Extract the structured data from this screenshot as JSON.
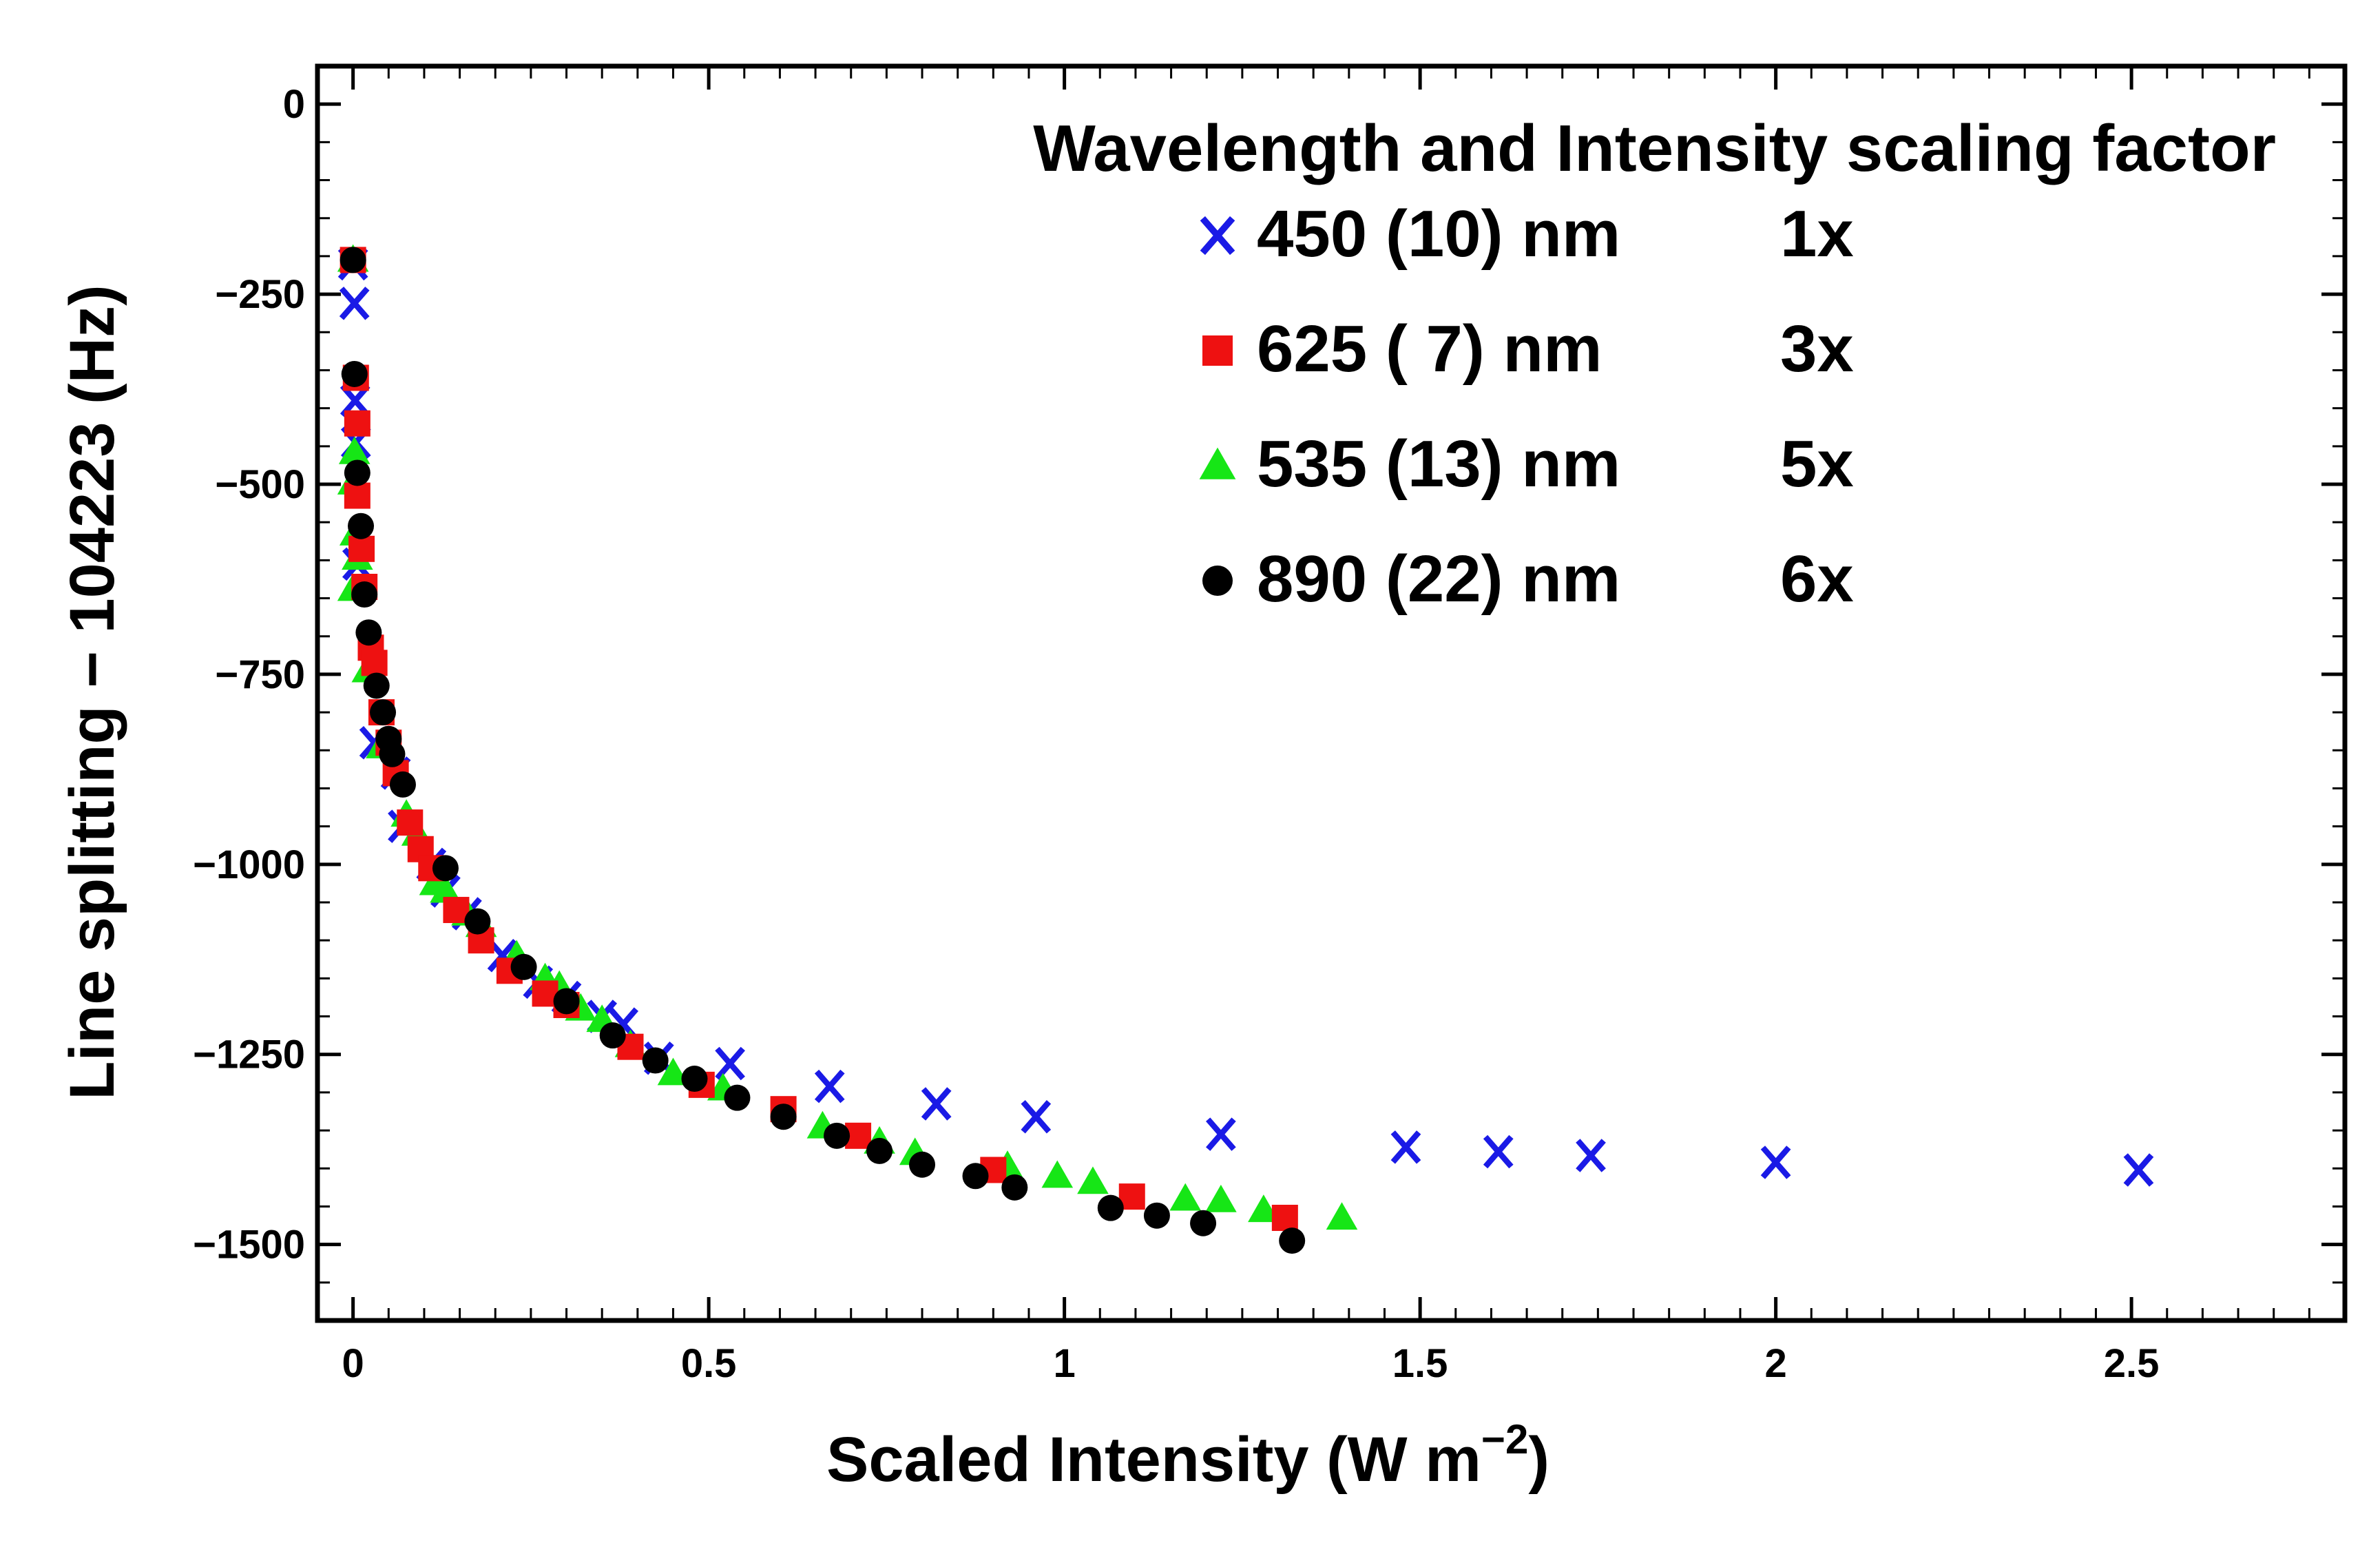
{
  "chart_data": {
    "type": "scatter",
    "title": "",
    "xlabel": "Scaled Intensity (W m",
    "xlabel_sup": "−2",
    "xlabel_end": ")",
    "ylabel": "Line splitting − 104223 (Hz)",
    "xlim": [
      -0.05,
      2.8
    ],
    "ylim": [
      -1600,
      50
    ],
    "xticks": [
      {
        "value": 0,
        "label": "0"
      },
      {
        "value": 0.5,
        "label": "0.5"
      },
      {
        "value": 1,
        "label": "1"
      },
      {
        "value": 1.5,
        "label": "1.5"
      },
      {
        "value": 2,
        "label": "2"
      },
      {
        "value": 2.5,
        "label": "2.5"
      }
    ],
    "yticks": [
      {
        "value": 0,
        "label": "0"
      },
      {
        "value": -250,
        "label": "−250"
      },
      {
        "value": -500,
        "label": "−500"
      },
      {
        "value": -750,
        "label": "−750"
      },
      {
        "value": -1000,
        "label": "−1000"
      },
      {
        "value": -1250,
        "label": "−1250"
      },
      {
        "value": -1500,
        "label": "−1500"
      }
    ],
    "grid": false,
    "legend": {
      "position": "top-right",
      "title": "Wavelength and Intensity scaling factor",
      "entries": [
        {
          "label": "450 (10) nm",
          "factor": "1x"
        },
        {
          "label": "625 ( 7)  nm",
          "factor": "3x"
        },
        {
          "label": "535 (13) nm",
          "factor": "5x"
        },
        {
          "label": "890 (22) nm",
          "factor": "6x"
        }
      ]
    },
    "series": [
      {
        "name": "450 (10) nm",
        "marker": "x",
        "color": "#1a1ae6",
        "points": [
          [
            0.0,
            -210
          ],
          [
            0.002,
            -262
          ],
          [
            0.003,
            -390
          ],
          [
            0.004,
            -445
          ],
          [
            0.006,
            -605
          ],
          [
            0.03,
            -840
          ],
          [
            0.06,
            -880
          ],
          [
            0.07,
            -950
          ],
          [
            0.11,
            -1000
          ],
          [
            0.13,
            -1035
          ],
          [
            0.16,
            -1065
          ],
          [
            0.21,
            -1120
          ],
          [
            0.26,
            -1155
          ],
          [
            0.3,
            -1175
          ],
          [
            0.35,
            -1200
          ],
          [
            0.38,
            -1210
          ],
          [
            0.43,
            -1255
          ],
          [
            0.53,
            -1262
          ],
          [
            0.67,
            -1292
          ],
          [
            0.82,
            -1315
          ],
          [
            0.96,
            -1332
          ],
          [
            1.22,
            -1355
          ],
          [
            1.48,
            -1372
          ],
          [
            1.61,
            -1378
          ],
          [
            1.74,
            -1383
          ],
          [
            2.0,
            -1392
          ],
          [
            2.51,
            -1402
          ]
        ]
      },
      {
        "name": "625 ( 7)  nm",
        "marker": "square",
        "color": "#ee1111",
        "points": [
          [
            0.0,
            -205
          ],
          [
            0.004,
            -360
          ],
          [
            0.006,
            -420
          ],
          [
            0.006,
            -515
          ],
          [
            0.012,
            -585
          ],
          [
            0.016,
            -635
          ],
          [
            0.025,
            -715
          ],
          [
            0.03,
            -735
          ],
          [
            0.04,
            -800
          ],
          [
            0.05,
            -840
          ],
          [
            0.06,
            -880
          ],
          [
            0.08,
            -945
          ],
          [
            0.095,
            -980
          ],
          [
            0.11,
            -1005
          ],
          [
            0.145,
            -1060
          ],
          [
            0.18,
            -1100
          ],
          [
            0.22,
            -1140
          ],
          [
            0.27,
            -1170
          ],
          [
            0.3,
            -1185
          ],
          [
            0.39,
            -1240
          ],
          [
            0.49,
            -1290
          ],
          [
            0.605,
            -1322
          ],
          [
            0.71,
            -1357
          ],
          [
            0.9,
            -1402
          ],
          [
            1.095,
            -1437
          ],
          [
            1.31,
            -1465
          ]
        ]
      },
      {
        "name": "535 (13) nm",
        "marker": "triangle",
        "color": "#16e616",
        "points": [
          [
            0.0,
            -205
          ],
          [
            0.002,
            -458
          ],
          [
            0.0,
            -498
          ],
          [
            0.003,
            -565
          ],
          [
            0.006,
            -597
          ],
          [
            0.0,
            -638
          ],
          [
            0.02,
            -745
          ],
          [
            0.04,
            -845
          ],
          [
            0.075,
            -935
          ],
          [
            0.09,
            -960
          ],
          [
            0.115,
            -1025
          ],
          [
            0.13,
            -1035
          ],
          [
            0.16,
            -1065
          ],
          [
            0.18,
            -1080
          ],
          [
            0.23,
            -1120
          ],
          [
            0.27,
            -1150
          ],
          [
            0.29,
            -1160
          ],
          [
            0.32,
            -1190
          ],
          [
            0.35,
            -1205
          ],
          [
            0.39,
            -1238
          ],
          [
            0.45,
            -1275
          ],
          [
            0.52,
            -1295
          ],
          [
            0.66,
            -1345
          ],
          [
            0.74,
            -1365
          ],
          [
            0.79,
            -1380
          ],
          [
            0.92,
            -1397
          ],
          [
            0.99,
            -1410
          ],
          [
            1.04,
            -1418
          ],
          [
            1.17,
            -1440
          ],
          [
            1.22,
            -1442
          ],
          [
            1.28,
            -1455
          ],
          [
            1.39,
            -1465
          ]
        ]
      },
      {
        "name": "890 (22) nm",
        "marker": "circle",
        "color": "#000000",
        "points": [
          [
            0.0,
            -205
          ],
          [
            0.002,
            -355
          ],
          [
            0.006,
            -485
          ],
          [
            0.011,
            -555
          ],
          [
            0.016,
            -645
          ],
          [
            0.022,
            -695
          ],
          [
            0.033,
            -765
          ],
          [
            0.042,
            -800
          ],
          [
            0.05,
            -835
          ],
          [
            0.055,
            -855
          ],
          [
            0.07,
            -895
          ],
          [
            0.13,
            -1005
          ],
          [
            0.175,
            -1075
          ],
          [
            0.24,
            -1135
          ],
          [
            0.3,
            -1180
          ],
          [
            0.365,
            -1225
          ],
          [
            0.425,
            -1258
          ],
          [
            0.48,
            -1282
          ],
          [
            0.54,
            -1307
          ],
          [
            0.605,
            -1332
          ],
          [
            0.68,
            -1357
          ],
          [
            0.74,
            -1377
          ],
          [
            0.8,
            -1395
          ],
          [
            0.875,
            -1410
          ],
          [
            0.93,
            -1425
          ],
          [
            1.065,
            -1452
          ],
          [
            1.13,
            -1462
          ],
          [
            1.195,
            -1472
          ],
          [
            1.32,
            -1495
          ]
        ]
      }
    ]
  }
}
